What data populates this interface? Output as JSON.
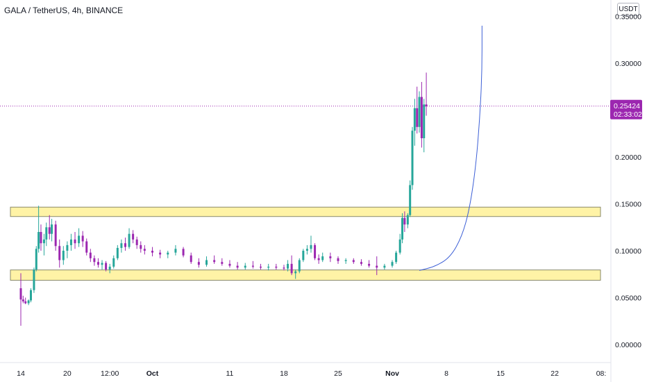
{
  "header": {
    "symbol_title": "GALA / TetherUS, 4h, BINANCE",
    "currency_button": "USDT"
  },
  "chart_data": {
    "type": "candlestick",
    "title": "GALA / TetherUS, 4h, BINANCE",
    "symbol": "GALA / TetherUS",
    "interval": "4h",
    "exchange": "BINANCE",
    "y_axis": {
      "labels": [
        "0.35000",
        "0.30000",
        "0.25000",
        "0.20000",
        "0.15000",
        "0.10000",
        "0.05000",
        "0.00000"
      ],
      "ticks": [
        0.35,
        0.3,
        0.25,
        0.2,
        0.15,
        0.1,
        0.05,
        0.0
      ],
      "range": [
        -0.02,
        0.36
      ],
      "position": "right"
    },
    "x_axis": {
      "labels": [
        "14",
        "20",
        "12:00",
        "Oct",
        "11",
        "18",
        "25",
        "Nov",
        "8",
        "15",
        "22",
        "08:"
      ],
      "bold_labels": [
        "Oct",
        "Nov"
      ],
      "range_days": [
        13,
        79
      ]
    },
    "x_tick_days": [
      14,
      20,
      25.5,
      31,
      41,
      48,
      55,
      62,
      69,
      76,
      83,
      89
    ],
    "last_price": {
      "value": "0.25424",
      "countdown": "02:33:02",
      "numeric": 0.25424,
      "color": "#9c27b0"
    },
    "support_zones": [
      {
        "low": 0.1365,
        "high": 0.1465,
        "fill": "#fff3a6",
        "stroke": "#8a8a6a"
      },
      {
        "low": 0.0685,
        "high": 0.0795,
        "fill": "#fff3a6",
        "stroke": "#8a8a6a"
      }
    ],
    "curve": {
      "color": "#3c5fd6",
      "points": [
        [
          65.5,
          0.079
        ],
        [
          67.5,
          0.083
        ],
        [
          69.5,
          0.093
        ],
        [
          71,
          0.115
        ],
        [
          72,
          0.145
        ],
        [
          72.8,
          0.19
        ],
        [
          73.3,
          0.24
        ],
        [
          73.6,
          0.29
        ],
        [
          73.6,
          0.34
        ]
      ]
    },
    "candles": [
      [
        14.0,
        0.06,
        0.076,
        0.02,
        0.048
      ],
      [
        14.3,
        0.048,
        0.052,
        0.044,
        0.046
      ],
      [
        14.6,
        0.046,
        0.05,
        0.043,
        0.044
      ],
      [
        15.0,
        0.044,
        0.048,
        0.042,
        0.047
      ],
      [
        15.3,
        0.047,
        0.06,
        0.045,
        0.058
      ],
      [
        15.7,
        0.058,
        0.082,
        0.055,
        0.08
      ],
      [
        16.0,
        0.08,
        0.105,
        0.078,
        0.102
      ],
      [
        16.3,
        0.102,
        0.148,
        0.098,
        0.12
      ],
      [
        16.6,
        0.12,
        0.128,
        0.1,
        0.108
      ],
      [
        17.0,
        0.108,
        0.118,
        0.095,
        0.112
      ],
      [
        17.3,
        0.112,
        0.13,
        0.105,
        0.125
      ],
      [
        17.7,
        0.125,
        0.138,
        0.112,
        0.118
      ],
      [
        18.0,
        0.118,
        0.134,
        0.11,
        0.128
      ],
      [
        18.5,
        0.128,
        0.132,
        0.1,
        0.105
      ],
      [
        19.0,
        0.105,
        0.112,
        0.082,
        0.09
      ],
      [
        19.5,
        0.09,
        0.105,
        0.085,
        0.1
      ],
      [
        20.0,
        0.1,
        0.11,
        0.092,
        0.106
      ],
      [
        20.5,
        0.106,
        0.118,
        0.1,
        0.112
      ],
      [
        21.0,
        0.112,
        0.12,
        0.102,
        0.108
      ],
      [
        21.5,
        0.108,
        0.124,
        0.104,
        0.116
      ],
      [
        22.0,
        0.116,
        0.121,
        0.104,
        0.11
      ],
      [
        22.5,
        0.11,
        0.113,
        0.095,
        0.098
      ],
      [
        23.0,
        0.098,
        0.102,
        0.088,
        0.092
      ],
      [
        23.5,
        0.092,
        0.095,
        0.084,
        0.088
      ],
      [
        24.0,
        0.088,
        0.092,
        0.082,
        0.085
      ],
      [
        24.5,
        0.085,
        0.09,
        0.08,
        0.087
      ],
      [
        25.0,
        0.087,
        0.089,
        0.078,
        0.08
      ],
      [
        25.5,
        0.08,
        0.086,
        0.076,
        0.083
      ],
      [
        26.0,
        0.083,
        0.095,
        0.081,
        0.092
      ],
      [
        26.5,
        0.092,
        0.106,
        0.09,
        0.103
      ],
      [
        27.0,
        0.103,
        0.112,
        0.098,
        0.108
      ],
      [
        27.5,
        0.108,
        0.114,
        0.1,
        0.104
      ],
      [
        28.0,
        0.104,
        0.124,
        0.102,
        0.118
      ],
      [
        28.5,
        0.118,
        0.122,
        0.108,
        0.112
      ],
      [
        29.0,
        0.112,
        0.115,
        0.102,
        0.106
      ],
      [
        29.5,
        0.106,
        0.11,
        0.098,
        0.102
      ],
      [
        30.0,
        0.102,
        0.106,
        0.096,
        0.1
      ],
      [
        31.0,
        0.1,
        0.104,
        0.094,
        0.098
      ],
      [
        32.0,
        0.098,
        0.101,
        0.092,
        0.096
      ],
      [
        33.0,
        0.096,
        0.1,
        0.092,
        0.098
      ],
      [
        34.0,
        0.098,
        0.106,
        0.095,
        0.102
      ],
      [
        35.0,
        0.102,
        0.104,
        0.093,
        0.095
      ],
      [
        36.0,
        0.095,
        0.098,
        0.086,
        0.088
      ],
      [
        37.0,
        0.088,
        0.092,
        0.082,
        0.085
      ],
      [
        38.0,
        0.085,
        0.094,
        0.083,
        0.09
      ],
      [
        39.0,
        0.09,
        0.095,
        0.086,
        0.088
      ],
      [
        40.0,
        0.088,
        0.092,
        0.084,
        0.086
      ],
      [
        41.0,
        0.086,
        0.09,
        0.082,
        0.084
      ],
      [
        42.0,
        0.084,
        0.088,
        0.08,
        0.082
      ],
      [
        43.0,
        0.082,
        0.087,
        0.08,
        0.084
      ],
      [
        44.0,
        0.084,
        0.089,
        0.081,
        0.083
      ],
      [
        45.0,
        0.083,
        0.086,
        0.08,
        0.082
      ],
      [
        46.0,
        0.082,
        0.086,
        0.079,
        0.083
      ],
      [
        47.0,
        0.083,
        0.086,
        0.08,
        0.082
      ],
      [
        48.0,
        0.082,
        0.085,
        0.079,
        0.081
      ],
      [
        48.5,
        0.081,
        0.09,
        0.078,
        0.086
      ],
      [
        49.0,
        0.086,
        0.095,
        0.074,
        0.076
      ],
      [
        49.5,
        0.076,
        0.08,
        0.07,
        0.078
      ],
      [
        50.0,
        0.078,
        0.092,
        0.076,
        0.09
      ],
      [
        50.5,
        0.09,
        0.102,
        0.088,
        0.1
      ],
      [
        51.0,
        0.1,
        0.106,
        0.096,
        0.102
      ],
      [
        51.5,
        0.102,
        0.116,
        0.098,
        0.106
      ],
      [
        52.0,
        0.106,
        0.108,
        0.09,
        0.092
      ],
      [
        52.5,
        0.092,
        0.096,
        0.086,
        0.09
      ],
      [
        53.0,
        0.09,
        0.098,
        0.088,
        0.094
      ],
      [
        54.0,
        0.094,
        0.098,
        0.088,
        0.092
      ],
      [
        55.0,
        0.092,
        0.094,
        0.086,
        0.089
      ],
      [
        56.0,
        0.089,
        0.092,
        0.086,
        0.09
      ],
      [
        57.0,
        0.09,
        0.092,
        0.086,
        0.088
      ],
      [
        58.0,
        0.088,
        0.091,
        0.084,
        0.086
      ],
      [
        59.0,
        0.086,
        0.09,
        0.082,
        0.084
      ],
      [
        60.0,
        0.084,
        0.094,
        0.074,
        0.082
      ],
      [
        61.0,
        0.082,
        0.086,
        0.08,
        0.084
      ],
      [
        62.0,
        0.084,
        0.09,
        0.082,
        0.088
      ],
      [
        62.5,
        0.088,
        0.1,
        0.086,
        0.098
      ],
      [
        63.0,
        0.098,
        0.118,
        0.096,
        0.112
      ],
      [
        63.3,
        0.112,
        0.14,
        0.108,
        0.135
      ],
      [
        63.6,
        0.135,
        0.142,
        0.12,
        0.128
      ],
      [
        64.0,
        0.128,
        0.14,
        0.124,
        0.138
      ],
      [
        64.3,
        0.138,
        0.175,
        0.136,
        0.17
      ],
      [
        64.6,
        0.17,
        0.232,
        0.165,
        0.228
      ],
      [
        64.9,
        0.228,
        0.262,
        0.212,
        0.252
      ],
      [
        65.2,
        0.252,
        0.275,
        0.225,
        0.232
      ],
      [
        65.5,
        0.232,
        0.27,
        0.226,
        0.264
      ],
      [
        65.8,
        0.264,
        0.28,
        0.21,
        0.22
      ],
      [
        66.1,
        0.22,
        0.262,
        0.205,
        0.256
      ],
      [
        66.4,
        0.256,
        0.29,
        0.244,
        0.254
      ]
    ]
  }
}
